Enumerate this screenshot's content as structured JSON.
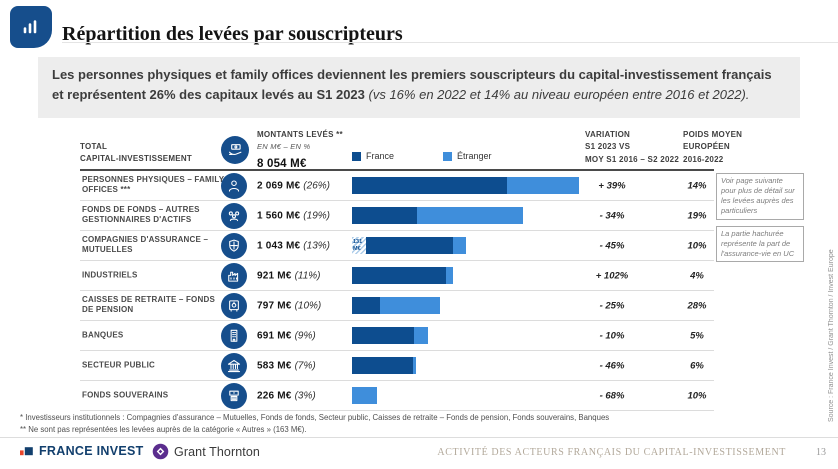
{
  "colors": {
    "france": "#0d4d8f",
    "etranger": "#3f8edb",
    "navy": "#164e8c",
    "fi_red": "#e8452c",
    "fi_navy": "#123f6d",
    "gt_purple": "#5b2d8e"
  },
  "header": {
    "title": "Répartition des levées par souscripteurs"
  },
  "intro": {
    "bold": "Les personnes physiques et family offices deviennent les premiers souscripteurs du capital-investissement français et représentent 26% des capitaux levés au S1 2023 ",
    "italic": "(vs 16% en 2022 et 14% au niveau européen entre 2016 et 2022)."
  },
  "table": {
    "total_line1": "TOTAL",
    "total_line2": "CAPITAL-INVESTISSEMENT",
    "montants": {
      "header": "MONTANTS LEVÉS **",
      "sub": "EN M€  –  EN %",
      "total": "8 054 M€"
    },
    "legend": [
      {
        "label": "France"
      },
      {
        "label": "Étranger"
      }
    ],
    "variation_header": [
      "VARIATION",
      "S1 2023 VS",
      "MOY S1 2016 – S2 2022"
    ],
    "poids_header": [
      "POIDS MOYEN",
      "EUROPÉEN",
      "2016-2022"
    ],
    "rows": [
      {
        "label": "PERSONNES PHYSIQUES – FAMILY OFFICES ***",
        "icon": "person",
        "amount": "2 069 M€",
        "pct": "(26%)",
        "variation": "+ 39%",
        "poids": "14%",
        "segments": {
          "hatch": 0,
          "france": 1413,
          "etranger": 656
        }
      },
      {
        "label": "FONDS DE FONDS – AUTRES GESTIONNAIRES D'ACTIFS",
        "icon": "group",
        "amount": "1 560 M€",
        "pct": "(19%)",
        "variation": "- 34%",
        "poids": "19%",
        "segments": {
          "hatch": 0,
          "france": 592,
          "etranger": 968
        }
      },
      {
        "label": "COMPAGNIES D'ASSURANCE – MUTUELLES",
        "icon": "shield",
        "amount": "1 043 M€",
        "pct": "(13%)",
        "variation": "- 45%",
        "poids": "10%",
        "segments": {
          "hatch": 131,
          "france": 791,
          "etranger": 121
        },
        "hatch_label": "131 M€"
      },
      {
        "label": "INDUSTRIELS",
        "icon": "factory",
        "amount": "921 M€",
        "pct": "(11%)",
        "variation": "+ 102%",
        "poids": "4%",
        "segments": {
          "hatch": 0,
          "france": 857,
          "etranger": 64
        }
      },
      {
        "label": "CAISSES DE RETRAITE – FONDS DE PENSION",
        "icon": "safe",
        "amount": "797 M€",
        "pct": "(10%)",
        "variation": "- 25%",
        "poids": "28%",
        "segments": {
          "hatch": 0,
          "france": 254,
          "etranger": 543
        }
      },
      {
        "label": "BANQUES",
        "icon": "tower",
        "amount": "691 M€",
        "pct": "(9%)",
        "variation": "- 10%",
        "poids": "5%",
        "segments": {
          "hatch": 0,
          "france": 564,
          "etranger": 127
        }
      },
      {
        "label": "SECTEUR PUBLIC",
        "icon": "bank",
        "amount": "583 M€",
        "pct": "(7%)",
        "variation": "- 46%",
        "poids": "6%",
        "segments": {
          "hatch": 0,
          "france": 556,
          "etranger": 27
        }
      },
      {
        "label": "FONDS SOUVERAINS",
        "icon": "cash",
        "amount": "226 M€",
        "pct": "(3%)",
        "variation": "- 68%",
        "poids": "10%",
        "segments": {
          "hatch": 0,
          "france": 0,
          "etranger": 226
        }
      }
    ]
  },
  "notes": [
    {
      "text": "Voir page suivante pour plus de détail sur les levées auprès des particuliers"
    },
    {
      "text": "La partie hachurée représente la part de l'assurance-vie en UC"
    }
  ],
  "footnotes": [
    "* Investisseurs institutionnels : Compagnies d'assurance – Mutuelles, Fonds de fonds, Secteur public, Caisses de retraite – Fonds de pension, Fonds souverains, Banques",
    "** Ne sont pas représentées les levées auprès de la catégorie « Autres » (163 M€)."
  ],
  "footer": {
    "logo1": "FRANCE INVEST",
    "logo2": "Grant Thornton",
    "caption": "ACTIVITÉ DES ACTEURS FRANÇAIS DU CAPITAL-INVESTISSEMENT",
    "page": "13"
  },
  "source_vertical": "Source : France Invest / Grant Thornton / Invest Europe",
  "chart_data": {
    "type": "bar",
    "orientation": "horizontal",
    "stacked": true,
    "title": "Répartition des levées par souscripteurs",
    "unit": "M€",
    "total_label": "8 054 M€",
    "legend_position": "top",
    "categories": [
      "PERSONNES PHYSIQUES – FAMILY OFFICES",
      "FONDS DE FONDS – AUTRES GESTIONNAIRES D'ACTIFS",
      "COMPAGNIES D'ASSURANCE – MUTUELLES",
      "INDUSTRIELS",
      "CAISSES DE RETRAITE – FONDS DE PENSION",
      "BANQUES",
      "SECTEUR PUBLIC",
      "FONDS SOUVERAINS"
    ],
    "totals_meur": [
      2069,
      1560,
      1043,
      921,
      797,
      691,
      583,
      226
    ],
    "totals_pct": [
      26,
      19,
      13,
      11,
      10,
      9,
      7,
      3
    ],
    "series": [
      {
        "name": "France",
        "color": "#0d4d8f",
        "values": [
          1413,
          592,
          922,
          857,
          254,
          564,
          556,
          0
        ]
      },
      {
        "name": "Étranger",
        "color": "#3f8edb",
        "values": [
          656,
          968,
          121,
          64,
          543,
          127,
          27,
          226
        ]
      }
    ],
    "annotations": [
      {
        "category": "COMPAGNIES D'ASSURANCE – MUTUELLES",
        "label": "131 M€",
        "meaning": "partie hachurée : part de l'assurance-vie en UC"
      }
    ],
    "variation_s1_2023_vs_moy": [
      "+ 39%",
      "- 34%",
      "- 45%",
      "+ 102%",
      "- 25%",
      "- 10%",
      "- 46%",
      "- 68%"
    ],
    "poids_moyen_europeen_2016_2022": [
      "14%",
      "19%",
      "10%",
      "4%",
      "28%",
      "5%",
      "6%",
      "10%"
    ]
  }
}
